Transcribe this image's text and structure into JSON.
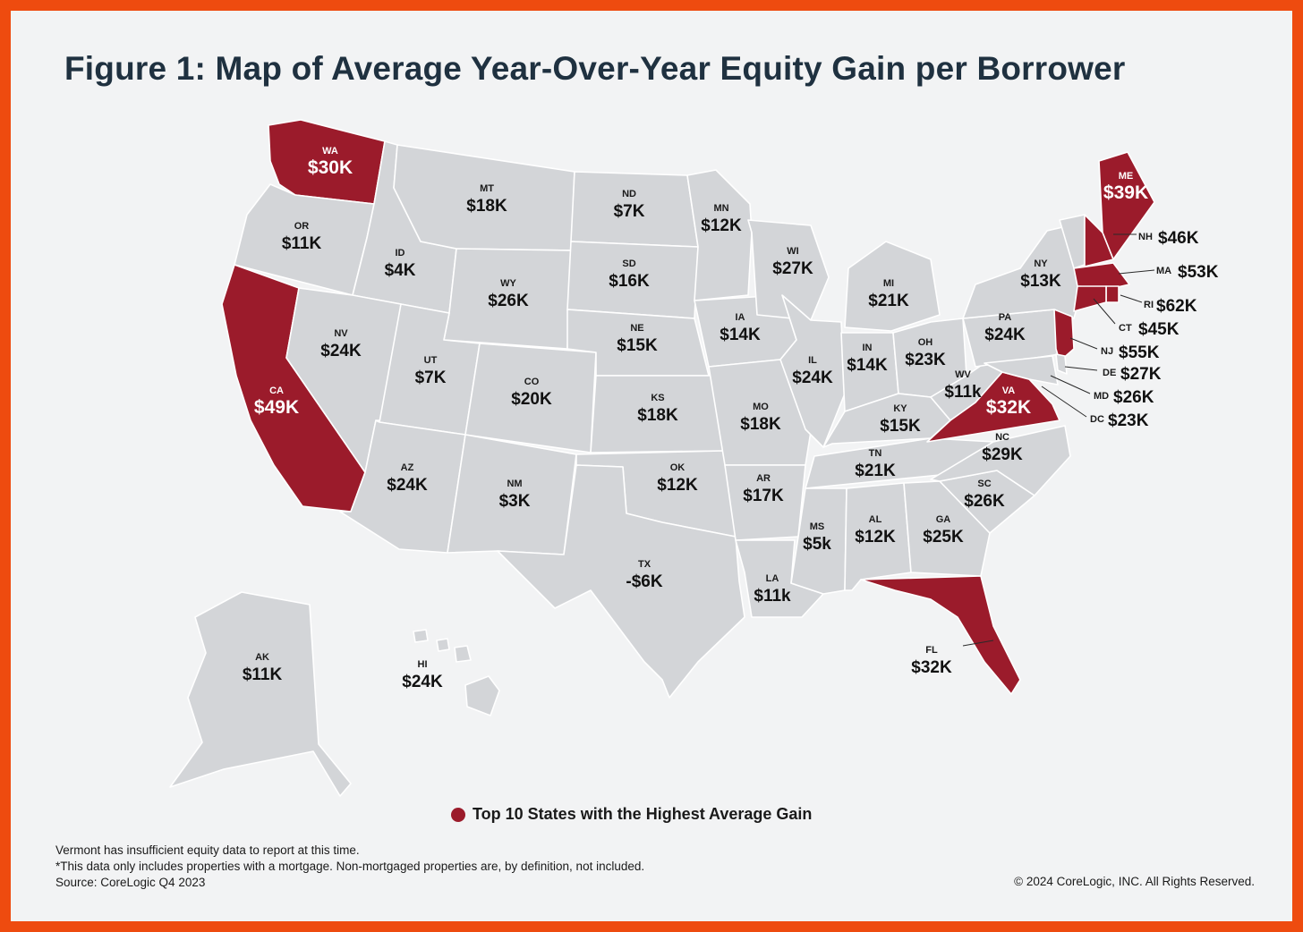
{
  "title": "Figure 1: Map of Average Year-Over-Year Equity Gain per Borrower",
  "colors": {
    "border": "#ee4b0f",
    "background": "#f2f3f4",
    "state_fill": "#d3d5d8",
    "top10_fill": "#9b1b2b",
    "title": "#1f3140"
  },
  "legend": {
    "label": "Top 10 States with the Highest Average Gain"
  },
  "states": {
    "WA": {
      "abbr": "WA",
      "value": "$30K",
      "top10": true
    },
    "OR": {
      "abbr": "OR",
      "value": "$11K",
      "top10": false
    },
    "CA": {
      "abbr": "CA",
      "value": "$49K",
      "top10": true
    },
    "ID": {
      "abbr": "ID",
      "value": "$4K",
      "top10": false
    },
    "NV": {
      "abbr": "NV",
      "value": "$24K",
      "top10": false
    },
    "MT": {
      "abbr": "MT",
      "value": "$18K",
      "top10": false
    },
    "WY": {
      "abbr": "WY",
      "value": "$26K",
      "top10": false
    },
    "UT": {
      "abbr": "UT",
      "value": "$7K",
      "top10": false
    },
    "CO": {
      "abbr": "CO",
      "value": "$20K",
      "top10": false
    },
    "AZ": {
      "abbr": "AZ",
      "value": "$24K",
      "top10": false
    },
    "NM": {
      "abbr": "NM",
      "value": "$3K",
      "top10": false
    },
    "ND": {
      "abbr": "ND",
      "value": "$7K",
      "top10": false
    },
    "SD": {
      "abbr": "SD",
      "value": "$16K",
      "top10": false
    },
    "NE": {
      "abbr": "NE",
      "value": "$15K",
      "top10": false
    },
    "KS": {
      "abbr": "KS",
      "value": "$18K",
      "top10": false
    },
    "OK": {
      "abbr": "OK",
      "value": "$12K",
      "top10": false
    },
    "TX": {
      "abbr": "TX",
      "value": "-$6K",
      "top10": false
    },
    "MN": {
      "abbr": "MN",
      "value": "$12K",
      "top10": false
    },
    "IA": {
      "abbr": "IA",
      "value": "$14K",
      "top10": false
    },
    "MO": {
      "abbr": "MO",
      "value": "$18K",
      "top10": false
    },
    "AR": {
      "abbr": "AR",
      "value": "$17K",
      "top10": false
    },
    "LA": {
      "abbr": "LA",
      "value": "$11k",
      "top10": false
    },
    "WI": {
      "abbr": "WI",
      "value": "$27K",
      "top10": false
    },
    "IL": {
      "abbr": "IL",
      "value": "$24K",
      "top10": false
    },
    "MI": {
      "abbr": "MI",
      "value": "$21K",
      "top10": false
    },
    "IN": {
      "abbr": "IN",
      "value": "$14K",
      "top10": false
    },
    "OH": {
      "abbr": "OH",
      "value": "$23K",
      "top10": false
    },
    "KY": {
      "abbr": "KY",
      "value": "$15K",
      "top10": false
    },
    "TN": {
      "abbr": "TN",
      "value": "$21K",
      "top10": false
    },
    "MS": {
      "abbr": "MS",
      "value": "$5k",
      "top10": false
    },
    "AL": {
      "abbr": "AL",
      "value": "$12K",
      "top10": false
    },
    "GA": {
      "abbr": "GA",
      "value": "$25K",
      "top10": false
    },
    "FL": {
      "abbr": "FL",
      "value": "$32K",
      "top10": true
    },
    "SC": {
      "abbr": "SC",
      "value": "$26K",
      "top10": false
    },
    "NC": {
      "abbr": "NC",
      "value": "$29K",
      "top10": false
    },
    "VA": {
      "abbr": "VA",
      "value": "$32K",
      "top10": true
    },
    "WV": {
      "abbr": "WV",
      "value": "$11k",
      "top10": false
    },
    "PA": {
      "abbr": "PA",
      "value": "$24K",
      "top10": false
    },
    "NY": {
      "abbr": "NY",
      "value": "$13K",
      "top10": false
    },
    "ME": {
      "abbr": "ME",
      "value": "$39K",
      "top10": true
    },
    "NH": {
      "abbr": "NH",
      "value": "$46K",
      "top10": true
    },
    "MA": {
      "abbr": "MA",
      "value": "$53K",
      "top10": true
    },
    "RI": {
      "abbr": "RI",
      "value": "$62K",
      "top10": true
    },
    "CT": {
      "abbr": "CT",
      "value": "$45K",
      "top10": true
    },
    "NJ": {
      "abbr": "NJ",
      "value": "$55K",
      "top10": true
    },
    "DE": {
      "abbr": "DE",
      "value": "$27K",
      "top10": false
    },
    "MD": {
      "abbr": "MD",
      "value": "$26K",
      "top10": false
    },
    "DC": {
      "abbr": "DC",
      "value": "$23K",
      "top10": false
    },
    "AK": {
      "abbr": "AK",
      "value": "$11K",
      "top10": false
    },
    "HI": {
      "abbr": "HI",
      "value": "$24K",
      "top10": false
    }
  },
  "notes": [
    "Vermont has insufficient equity data to report at this time.",
    "*This data only includes properties with a mortgage. Non-mortgaged properties are, by definition, not included.",
    "Source: CoreLogic Q4 2023"
  ],
  "copyright": "© 2024 CoreLogic, INC. All Rights Reserved."
}
